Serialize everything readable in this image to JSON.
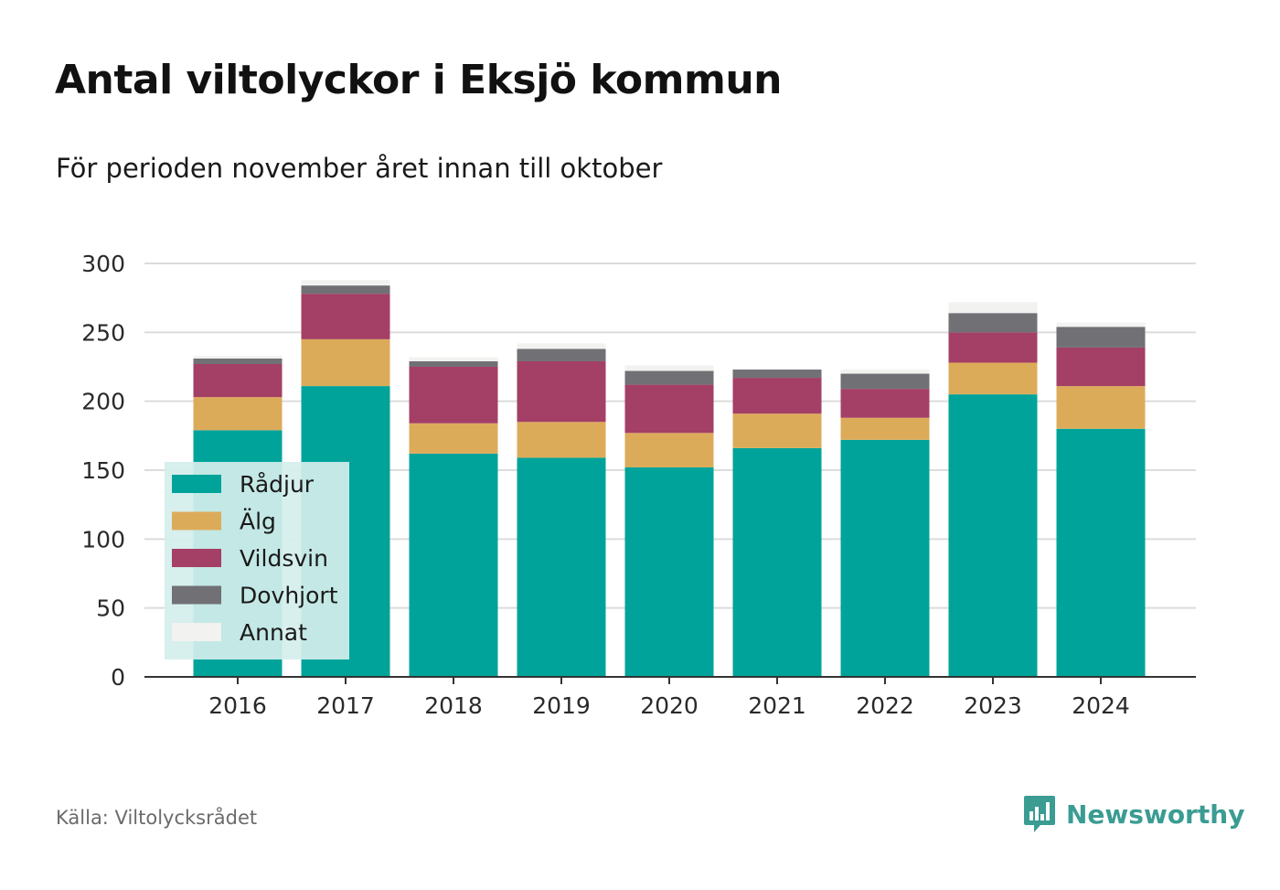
{
  "title": "Antal viltolyckor i Eksjö kommun",
  "subtitle": "För perioden november året innan till oktober",
  "source": "Källa: Viltolycksrådet",
  "brand": {
    "name": "Newsworthy",
    "icon": "newsworthy-logo-icon",
    "color": "#3a9c92"
  },
  "chart_data": {
    "type": "bar",
    "stacked": true,
    "categories": [
      "2016",
      "2017",
      "2018",
      "2019",
      "2020",
      "2021",
      "2022",
      "2023",
      "2024"
    ],
    "ylim": [
      0,
      300
    ],
    "yticks": [
      0,
      50,
      100,
      150,
      200,
      250,
      300
    ],
    "grid": true,
    "legend_position": "bottom-left",
    "series": [
      {
        "name": "Rådjur",
        "color": "#00a39a",
        "values": [
          179,
          211,
          162,
          159,
          152,
          166,
          172,
          205,
          180
        ]
      },
      {
        "name": "Älg",
        "color": "#dcab5a",
        "values": [
          24,
          34,
          22,
          26,
          25,
          25,
          16,
          23,
          31
        ]
      },
      {
        "name": "Vildsvin",
        "color": "#a43f66",
        "values": [
          24,
          33,
          41,
          44,
          35,
          26,
          21,
          22,
          28
        ]
      },
      {
        "name": "Dovhjort",
        "color": "#717075",
        "values": [
          4,
          6,
          4,
          9,
          10,
          6,
          11,
          14,
          15
        ]
      },
      {
        "name": "Annat",
        "color": "#f2f2f0",
        "values": [
          2,
          4,
          3,
          4,
          4,
          0,
          3,
          8,
          3
        ]
      }
    ]
  }
}
